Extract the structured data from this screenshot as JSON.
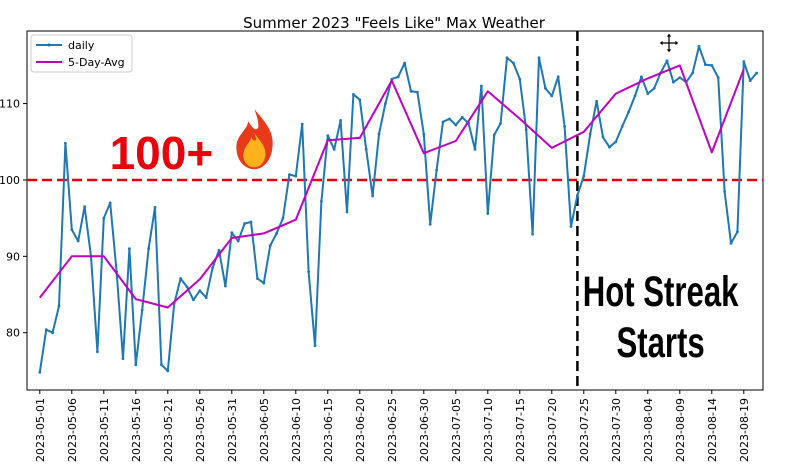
{
  "chart_data": {
    "type": "line",
    "title": "Summer 2023 \"Feels Like\" Max Weather",
    "xlabel": "",
    "ylabel": "",
    "x_range": [
      "2023-04-29",
      "2023-08-22"
    ],
    "ylim": [
      72.5,
      119.5
    ],
    "y_ticks": [
      80,
      90,
      100,
      110
    ],
    "x_ticks": [
      "2023-05-01",
      "2023-05-06",
      "2023-05-11",
      "2023-05-16",
      "2023-05-21",
      "2023-05-26",
      "2023-05-31",
      "2023-06-05",
      "2023-06-10",
      "2023-06-15",
      "2023-06-20",
      "2023-06-25",
      "2023-06-30",
      "2023-07-05",
      "2023-07-10",
      "2023-07-15",
      "2023-07-20",
      "2023-07-25",
      "2023-07-30",
      "2023-08-04",
      "2023-08-09",
      "2023-08-14",
      "2023-08-19"
    ],
    "grid": false,
    "legend": "top-left",
    "series": [
      {
        "name": "daily",
        "color": "#1f77b4",
        "marker": "dot",
        "start": "2023-05-01",
        "values": [
          74.8,
          80.4,
          80.0,
          83.5,
          104.8,
          93.5,
          92.0,
          96.5,
          90.0,
          77.5,
          95.0,
          97.0,
          88.0,
          76.6,
          91.0,
          75.8,
          83.0,
          91.0,
          96.4,
          75.8,
          75.0,
          83.8,
          87.1,
          86.0,
          84.3,
          85.5,
          84.6,
          88.5,
          90.8,
          86.1,
          93.1,
          92.0,
          94.3,
          94.5,
          87.1,
          86.5,
          91.4,
          93.0,
          95.0,
          100.7,
          100.5,
          107.3,
          88.0,
          78.3,
          97.2,
          105.8,
          104.0,
          107.8,
          95.8,
          111.2,
          110.5,
          104.0,
          97.9,
          106.0,
          110.0,
          113.2,
          113.5,
          115.3,
          111.6,
          111.5,
          106.0,
          94.2,
          101.3,
          107.6,
          108.0,
          107.2,
          108.2,
          107.4,
          104.0,
          112.3,
          95.6,
          105.9,
          107.4,
          116.0,
          115.3,
          113.2,
          106.6,
          92.9,
          116.0,
          112.0,
          111.0,
          113.5,
          107.0,
          93.9,
          98.0,
          100.5,
          106.0,
          110.3,
          105.6,
          104.3,
          105.0,
          107.0,
          108.9,
          111.0,
          113.5,
          111.3,
          112.0,
          114.0,
          115.6,
          112.8,
          113.4,
          112.8,
          114.0,
          117.5,
          115.1,
          115.0,
          113.4,
          98.5,
          91.7,
          93.2,
          115.5,
          113.0,
          114.0
        ]
      },
      {
        "name": "5-Day-Avg",
        "color": "#bf00bf",
        "dates": [
          "2023-05-01",
          "2023-05-06",
          "2023-05-11",
          "2023-05-16",
          "2023-05-21",
          "2023-05-26",
          "2023-05-31",
          "2023-06-05",
          "2023-06-10",
          "2023-06-15",
          "2023-06-20",
          "2023-06-25",
          "2023-06-30",
          "2023-07-05",
          "2023-07-10",
          "2023-07-15",
          "2023-07-20",
          "2023-07-25",
          "2023-07-30",
          "2023-08-04",
          "2023-08-09",
          "2023-08-14",
          "2023-08-19"
        ],
        "values": [
          84.6,
          90.0,
          90.0,
          84.4,
          83.3,
          87.0,
          92.4,
          93.0,
          94.8,
          105.2,
          105.5,
          113.0,
          103.5,
          105.1,
          111.6,
          108.0,
          104.2,
          106.3,
          111.3,
          113.3,
          115.0,
          103.6,
          114.5
        ]
      }
    ],
    "reference_lines": [
      {
        "axis": "y",
        "value": 100,
        "color": "#e8000b",
        "style": "dashed"
      },
      {
        "axis": "x",
        "value": "2023-07-24",
        "color": "#000000",
        "style": "dashed"
      }
    ],
    "annotations": [
      {
        "text": "100+",
        "emoji": "🔥",
        "x": "2023-05-20",
        "y": 103.5,
        "color": "#e8000b"
      },
      {
        "lines": [
          "Hot Streak",
          "Starts"
        ],
        "x": "2023-08-06",
        "y": 83.5,
        "color": "#000000"
      }
    ]
  }
}
